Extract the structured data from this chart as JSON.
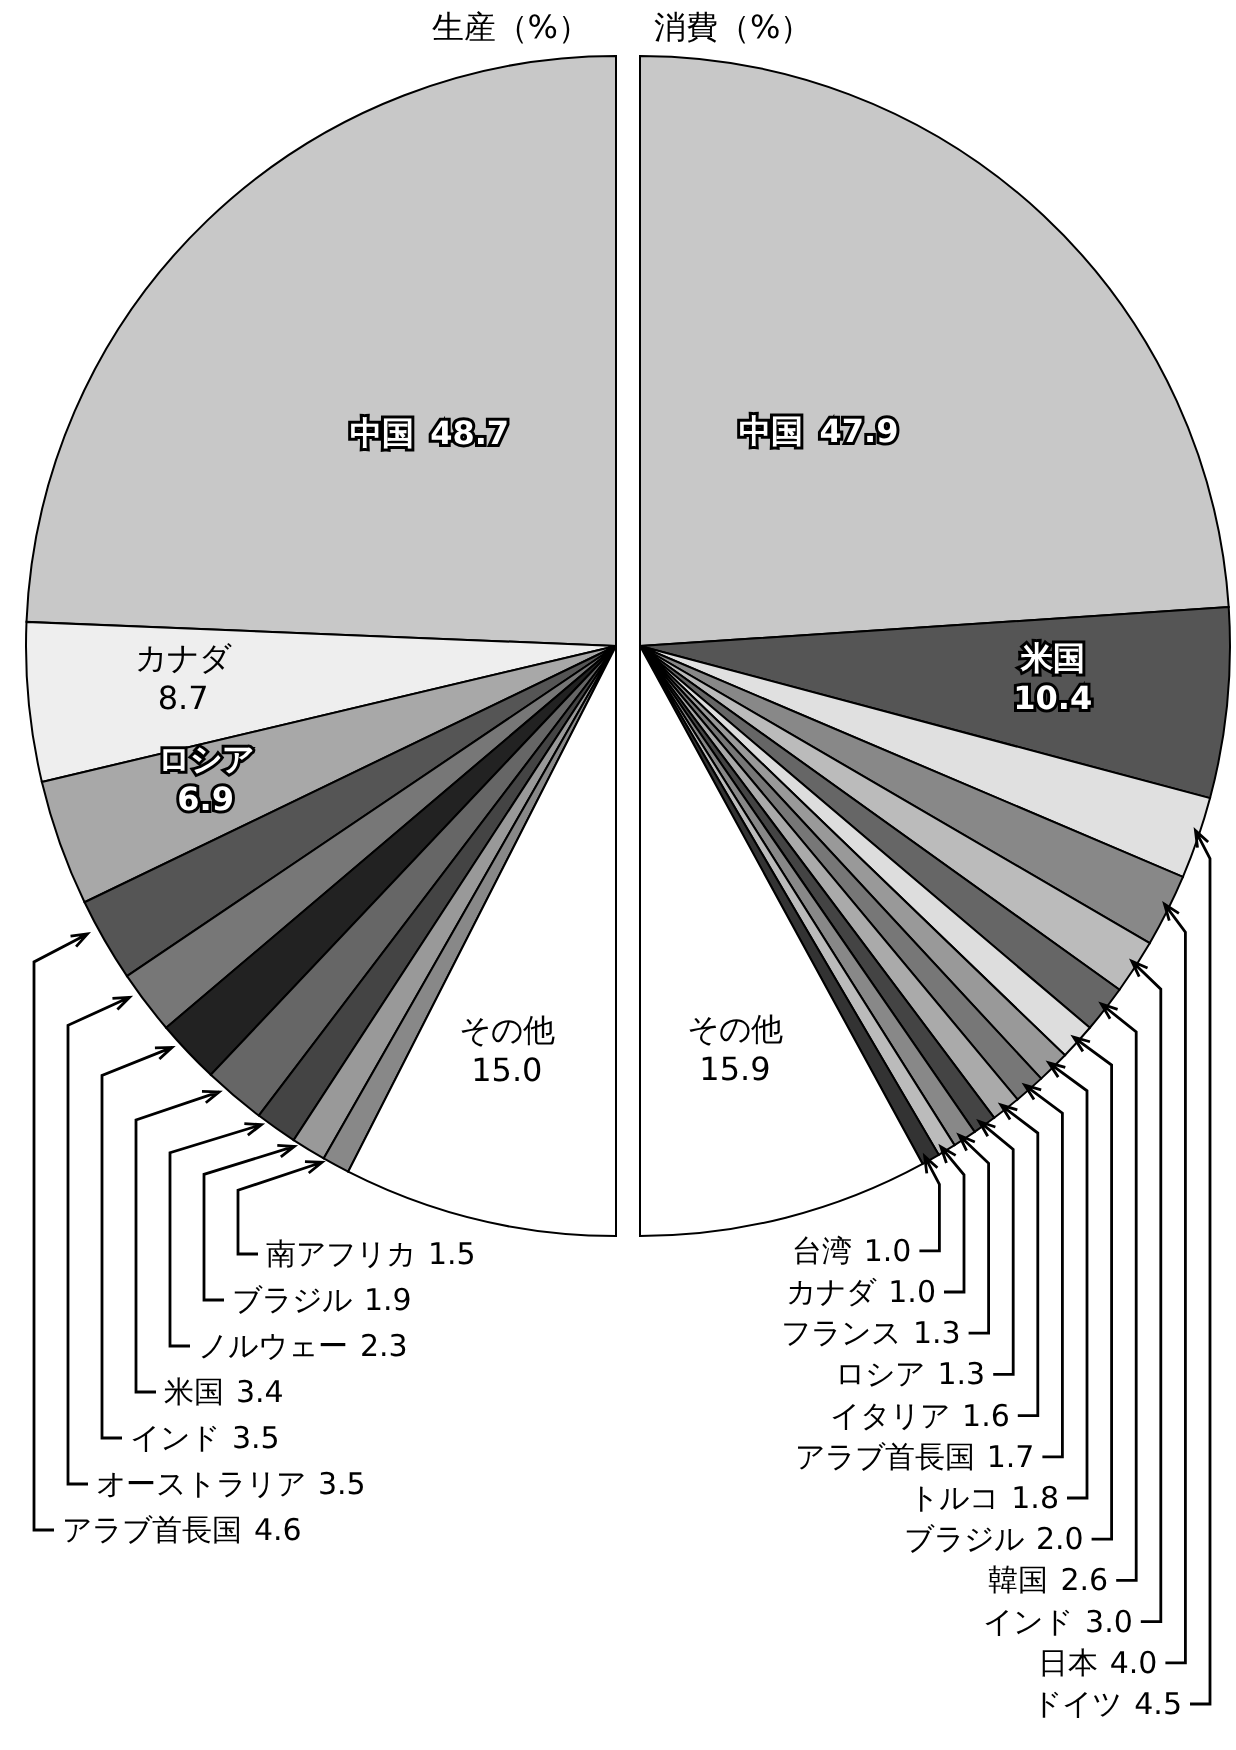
{
  "chart_data": [
    {
      "type": "pie",
      "title": "生産（%）",
      "categories": [
        "中国",
        "カナダ",
        "ロシア",
        "アラブ首長国",
        "オーストラリア",
        "インド",
        "米国",
        "ノルウェー",
        "ブラジル",
        "南アフリカ",
        "その他"
      ],
      "values": [
        48.7,
        8.7,
        6.9,
        4.6,
        3.5,
        3.5,
        3.4,
        2.3,
        1.9,
        1.5,
        15.0
      ],
      "colors": [
        "#c8c8c8",
        "#eeeeee",
        "#a8a8a8",
        "#555555",
        "#777777",
        "#222222",
        "#666666",
        "#444444",
        "#999999",
        "#888888",
        "#ffffff"
      ],
      "value_labels": [
        "48.7",
        "8.7",
        "6.9",
        "4.6",
        "3.5",
        "3.5",
        "3.4",
        "2.3",
        "1.9",
        "1.5",
        "15.0"
      ]
    },
    {
      "type": "pie",
      "title": "消費（%）",
      "categories": [
        "中国",
        "米国",
        "ドイツ",
        "日本",
        "インド",
        "韓国",
        "ブラジル",
        "トルコ",
        "アラブ首長国",
        "イタリア",
        "ロシア",
        "フランス",
        "カナダ",
        "台湾",
        "その他"
      ],
      "values": [
        47.9,
        10.4,
        4.5,
        4.0,
        3.0,
        2.6,
        2.0,
        1.8,
        1.7,
        1.6,
        1.3,
        1.3,
        1.0,
        1.0,
        15.9
      ],
      "colors": [
        "#c8c8c8",
        "#555555",
        "#e0e0e0",
        "#888888",
        "#bbbbbb",
        "#666666",
        "#dddddd",
        "#999999",
        "#777777",
        "#aaaaaa",
        "#444444",
        "#888888",
        "#bbbbbb",
        "#333333",
        "#ffffff"
      ],
      "value_labels": [
        "47.9",
        "10.4",
        "4.5",
        "4.0",
        "3.0",
        "2.6",
        "2.0",
        "1.8",
        "1.7",
        "1.6",
        "1.3",
        "1.3",
        "1.0",
        "1.0",
        "15.9"
      ]
    }
  ]
}
